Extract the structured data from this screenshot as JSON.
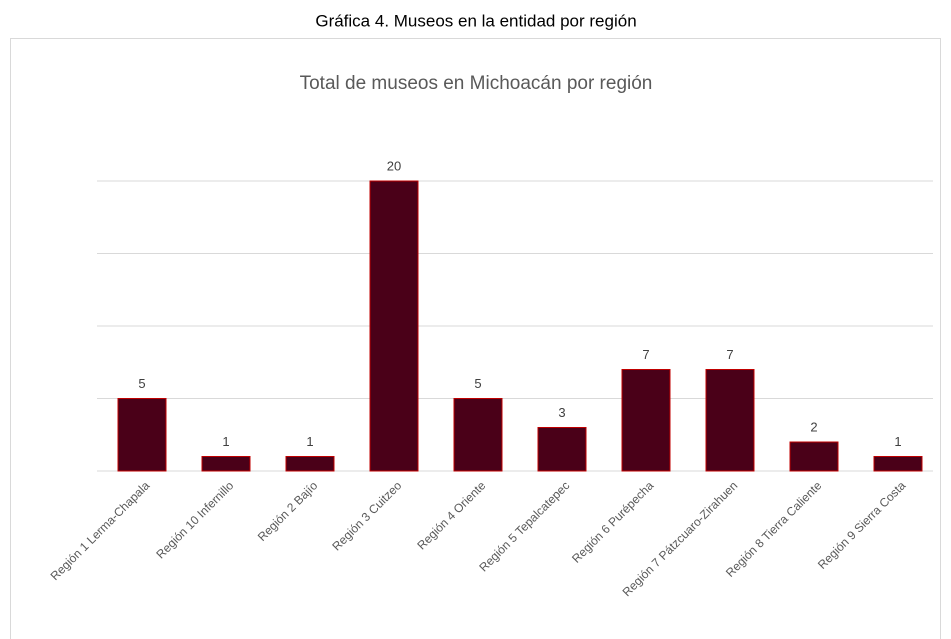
{
  "page_title": "Gráfica 4. Museos en la entidad por región",
  "chart_data": {
    "type": "bar",
    "title": "Total de museos en Michoacán por región",
    "categories": [
      "Región 1 Lerma-Chapala",
      "Región 10 Infernillo",
      "Región 2 Bajío",
      "Región 3 Cuitzeo",
      "Región 4 Oriente",
      "Región 5 Tepalcatepec",
      "Región 6 Purépecha",
      "Región 7 Pátzcuaro-Zirahuen",
      "Región 8 Tierra Caliente",
      "Región 9 Sierra Costa"
    ],
    "values": [
      5,
      1,
      1,
      20,
      5,
      3,
      7,
      7,
      2,
      1
    ],
    "color": "#4a0018",
    "ylim": [
      0,
      20
    ],
    "yticks": [
      0,
      5,
      10,
      15,
      20
    ],
    "grid": true
  }
}
